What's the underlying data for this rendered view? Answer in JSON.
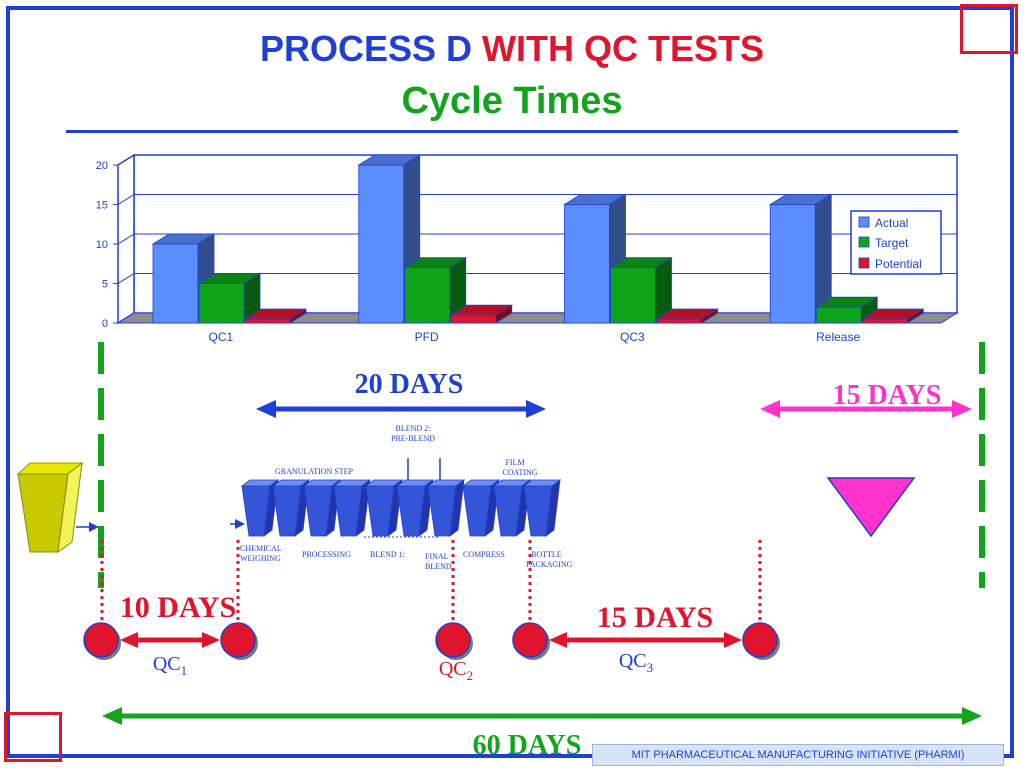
{
  "title": {
    "part1": "PROCESS D",
    "part2": "WITH QC TESTS",
    "subtitle": "Cycle Times"
  },
  "chart_data": {
    "type": "bar",
    "categories": [
      "QC1",
      "PFD",
      "QC3",
      "Release"
    ],
    "series": [
      {
        "name": "Actual",
        "values": [
          10,
          20,
          15,
          15
        ],
        "color": "#5b8dff"
      },
      {
        "name": "Target",
        "values": [
          5,
          7,
          7,
          2
        ],
        "color": "#0fa51a"
      },
      {
        "name": "Potential",
        "values": [
          0.5,
          1,
          0.5,
          0.5
        ],
        "color": "#e0142c"
      }
    ],
    "ylim": [
      0,
      20
    ],
    "yticks": [
      "0",
      "5",
      "10",
      "15",
      "20"
    ],
    "grid": true,
    "legend": "right"
  },
  "timeline": {
    "span_20": "20 DAYS",
    "span_15_top": "15 DAYS",
    "span_10": "10 DAYS",
    "span_15_bottom": "15 DAYS",
    "span_60": "60 DAYS",
    "qc1": "QC",
    "qc1_sub": "1",
    "qc2": "QC",
    "qc2_sub": "2",
    "qc3": "QC",
    "qc3_sub": "3"
  },
  "process": {
    "blend2": "BLEND 2:",
    "preblend": "PRE-BLEND",
    "granulation": "GRANULATION  STEP",
    "film": "FILM",
    "coating": "COATING",
    "chemical": "CHEMICAL",
    "weighing": "WEIGHING",
    "processing": "PROCESSING",
    "blend1": "BLEND 1:",
    "final": "FINAL",
    "blend": "BLEND",
    "compress": "COMPRESS",
    "bottle": "BOTTLE",
    "packaging": "PACKAGING"
  },
  "footer": "MIT PHARMACEUTICAL MANUFACTURING INITIATIVE (PHARMI)",
  "colors": {
    "blue": "#1f3fd6",
    "red": "#e0142c",
    "green": "#12a51c",
    "magenta": "#ff33cc"
  }
}
